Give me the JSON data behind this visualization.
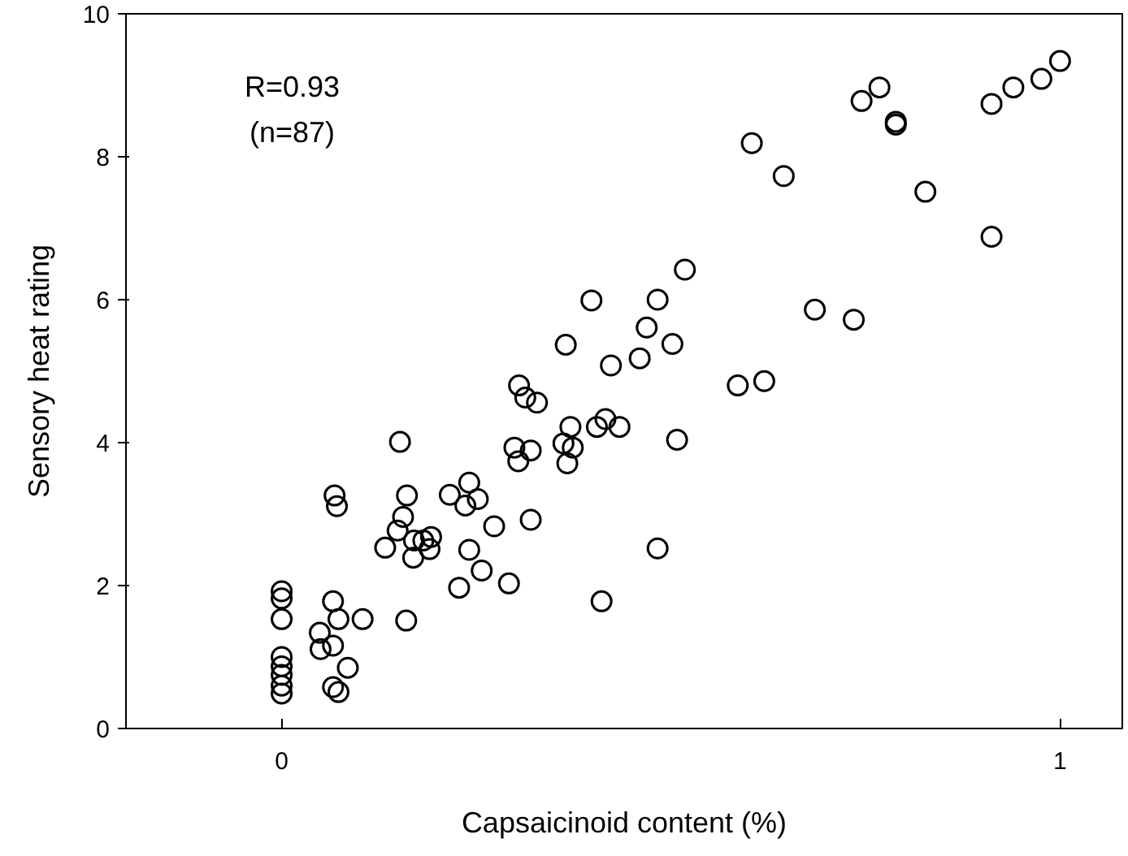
{
  "chart_data": {
    "type": "scatter",
    "xlabel": "Capsaicinoid content (%)",
    "ylabel": "Sensory heat rating",
    "annotations": [
      "R=0.93",
      "(n=87)"
    ],
    "xlim": [
      -0.2,
      1.08
    ],
    "ylim": [
      0,
      10
    ],
    "xticks": [
      0,
      1
    ],
    "yticks": [
      0,
      2,
      4,
      6,
      8,
      10
    ],
    "marker": "circle",
    "series": [
      {
        "color": "#000000",
        "x": [
          0,
          0,
          0,
          0,
          0,
          0,
          0,
          0,
          0.049,
          0.05,
          0.066,
          0.066,
          0.073,
          0.085,
          0.066,
          0.073,
          0.104,
          0.068,
          0.071,
          0.152,
          0.133,
          0.149,
          0.156,
          0.161,
          0.17,
          0.169,
          0.182,
          0.192,
          0.19,
          0.16,
          0.216,
          0.241,
          0.236,
          0.252,
          0.241,
          0.273,
          0.257,
          0.228,
          0.292,
          0.32,
          0.299,
          0.304,
          0.32,
          0.305,
          0.313,
          0.328,
          0.371,
          0.362,
          0.374,
          0.367,
          0.405,
          0.416,
          0.434,
          0.508,
          0.483,
          0.411,
          0.365,
          0.398,
          0.423,
          0.46,
          0.469,
          0.483,
          0.502,
          0.518,
          0.586,
          0.62,
          0.685,
          0.735,
          0.604,
          0.645,
          0.745,
          0.768,
          0.789,
          0.789,
          0.827,
          0.912,
          0.912,
          0.94,
          0.976,
          1.0
        ],
        "values": [
          1.92,
          1.82,
          1.53,
          1.0,
          0.87,
          0.75,
          0.6,
          0.49,
          1.34,
          1.11,
          1.16,
          0.58,
          0.51,
          0.85,
          1.78,
          1.53,
          1.53,
          3.26,
          3.11,
          4.01,
          2.53,
          2.77,
          2.96,
          3.26,
          2.63,
          2.39,
          2.63,
          2.68,
          2.51,
          1.51,
          3.27,
          3.44,
          3.12,
          3.21,
          2.5,
          2.83,
          2.21,
          1.97,
          2.03,
          2.92,
          3.93,
          3.74,
          3.89,
          4.8,
          4.63,
          4.56,
          4.22,
          3.99,
          3.93,
          3.71,
          4.22,
          4.33,
          4.22,
          4.04,
          2.52,
          1.78,
          5.37,
          5.99,
          5.08,
          5.18,
          5.61,
          6.0,
          5.38,
          6.42,
          4.8,
          4.86,
          5.86,
          5.72,
          8.19,
          7.73,
          8.78,
          8.97,
          8.49,
          8.45,
          7.51,
          6.88,
          8.74,
          8.97,
          9.09,
          9.34
        ]
      }
    ]
  }
}
